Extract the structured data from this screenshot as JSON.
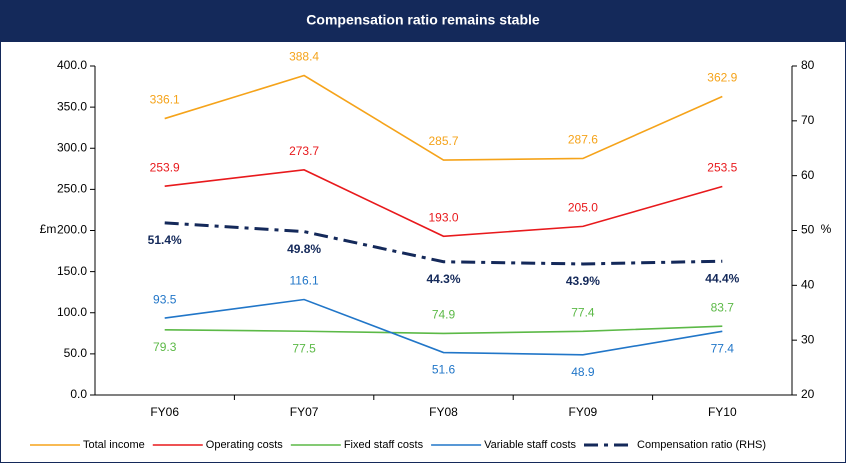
{
  "chart_data": {
    "type": "line",
    "title": "Compensation ratio remains stable",
    "y_label": "£m",
    "y2_label": "%",
    "categories": [
      "FY06",
      "FY07",
      "FY08",
      "FY09",
      "FY10"
    ],
    "ylim": [
      0,
      400
    ],
    "yticks": [
      {
        "value": 0,
        "label": "0.0"
      },
      {
        "value": 50,
        "label": "50.0"
      },
      {
        "value": 100,
        "label": "100.0"
      },
      {
        "value": 150,
        "label": "150.0"
      },
      {
        "value": 200,
        "label": "200.0"
      },
      {
        "value": 250,
        "label": "250.0"
      },
      {
        "value": 300,
        "label": "300.0"
      },
      {
        "value": 350,
        "label": "350.0"
      },
      {
        "value": 400,
        "label": "400.0"
      }
    ],
    "y2lim": [
      20,
      80
    ],
    "y2ticks": [
      20,
      30,
      40,
      50,
      60,
      70,
      80
    ],
    "series": [
      {
        "name": "Total income",
        "color": "#f5a31a",
        "values": [
          336.1,
          388.4,
          285.7,
          287.6,
          362.9
        ],
        "value_labels": [
          "336.1",
          "388.4",
          "285.7",
          "287.6",
          "362.9"
        ]
      },
      {
        "name": "Operating costs",
        "color": "#e8191c",
        "values": [
          253.9,
          273.7,
          193.0,
          205.0,
          253.5
        ],
        "value_labels": [
          "253.9",
          "273.7",
          "193.0",
          "205.0",
          "253.5"
        ]
      },
      {
        "name": "Fixed staff costs",
        "color": "#5cb947",
        "values": [
          79.3,
          77.5,
          74.9,
          77.4,
          83.7
        ],
        "value_labels": [
          "79.3",
          "77.5",
          "74.9",
          "77.4",
          "83.7"
        ]
      },
      {
        "name": "Variable staff costs",
        "color": "#2176c8",
        "values": [
          93.5,
          116.1,
          51.6,
          48.9,
          77.4
        ],
        "value_labels": [
          "93.5",
          "116.1",
          "51.6",
          "48.9",
          "77.4"
        ]
      },
      {
        "name": "Compensation ratio (RHS)",
        "color": "#14295a",
        "axis": "y2",
        "dashed": true,
        "values": [
          51.4,
          49.8,
          44.3,
          43.9,
          44.4
        ],
        "value_labels": [
          "51.4%",
          "49.8%",
          "44.3%",
          "43.9%",
          "44.4%"
        ]
      }
    ]
  }
}
